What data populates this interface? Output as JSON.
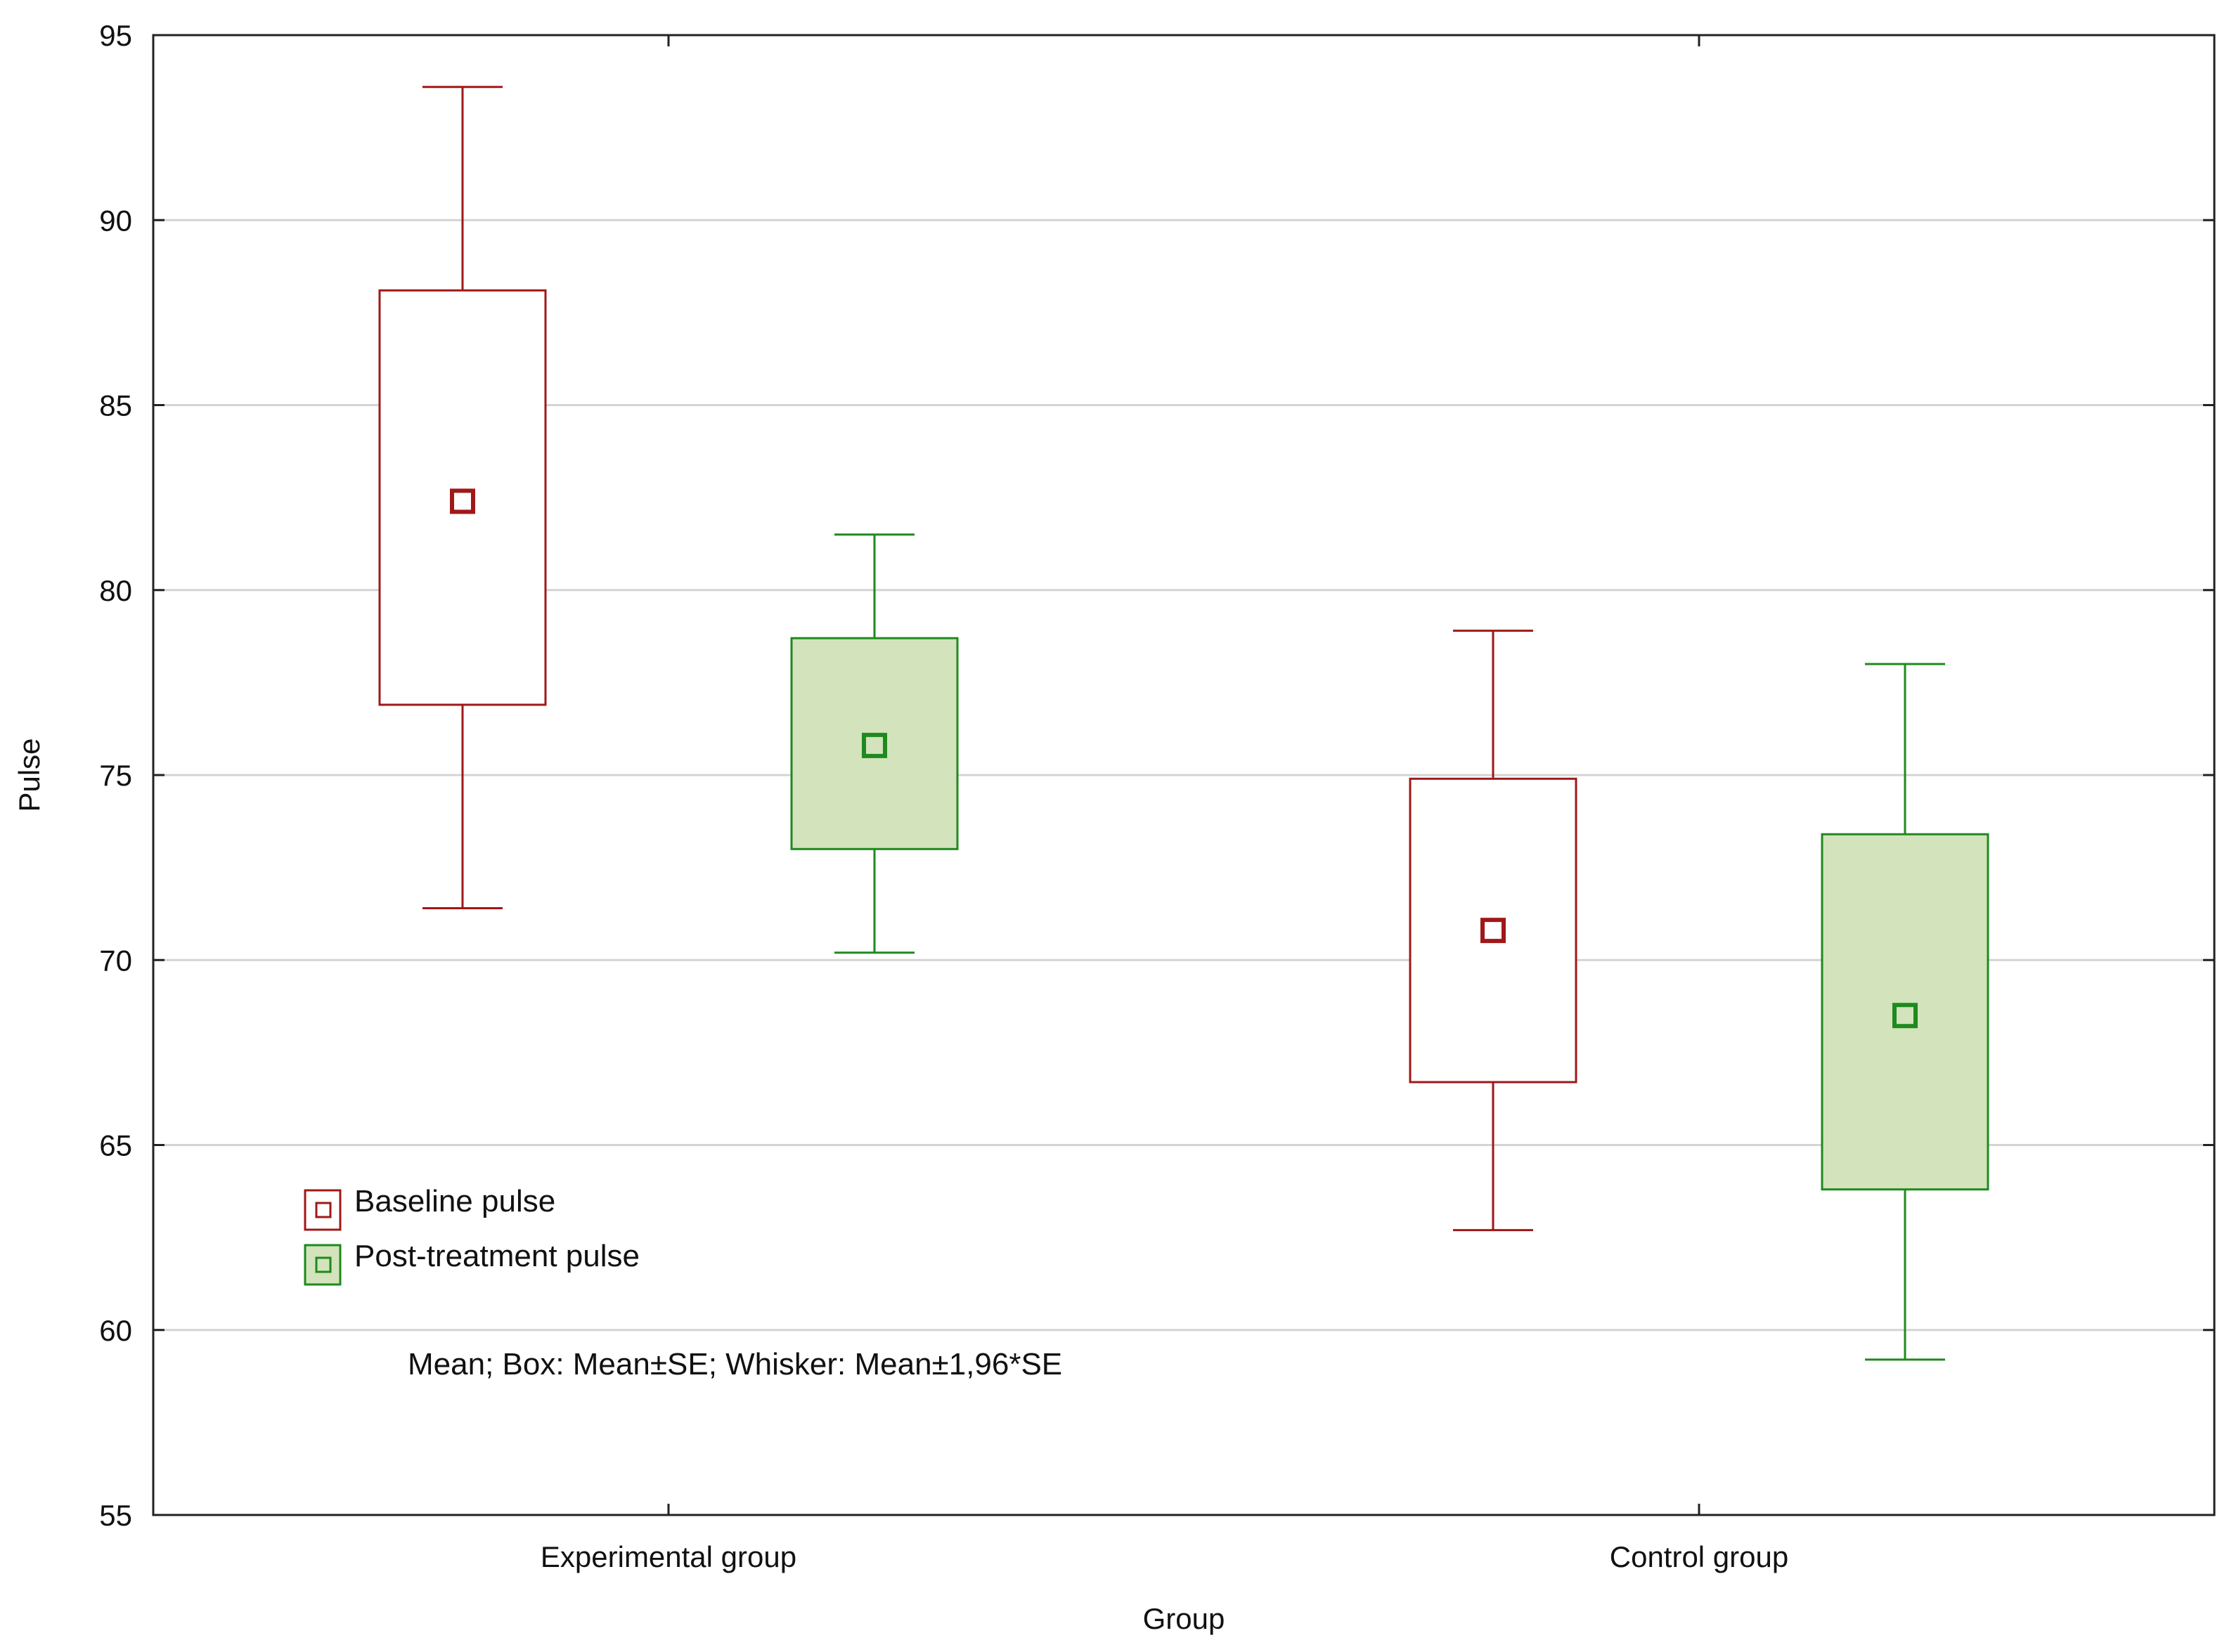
{
  "chart_data": {
    "type": "box",
    "xlabel": "Group",
    "ylabel": "Pulse",
    "ylim": [
      55,
      95
    ],
    "yticks": [
      55,
      60,
      65,
      70,
      75,
      80,
      85,
      90,
      95
    ],
    "ytick_labels": [
      "55",
      "60",
      "65",
      "70",
      "75",
      "80",
      "85",
      "90",
      "95"
    ],
    "grid": true,
    "categories": [
      "Experimental group",
      "Control group"
    ],
    "series": [
      {
        "name": "Baseline pulse",
        "color": "#a01818",
        "fill": "#ffffff",
        "mean": [
          82.4,
          70.8
        ],
        "box_low": [
          76.9,
          66.7
        ],
        "box_high": [
          88.1,
          74.9
        ],
        "whisker_low": [
          71.4,
          62.7
        ],
        "whisker_high": [
          93.6,
          78.9
        ]
      },
      {
        "name": "Post-treatment pulse",
        "color": "#1e8a1e",
        "fill": "#d3e3bc",
        "mean": [
          75.8,
          68.5
        ],
        "box_low": [
          73.0,
          63.8
        ],
        "box_high": [
          78.7,
          73.4
        ],
        "whisker_low": [
          70.2,
          59.2
        ],
        "whisker_high": [
          81.5,
          78.0
        ]
      }
    ],
    "legend": [
      "Baseline pulse",
      "Post-treatment pulse"
    ],
    "legend_position": "bottom-left",
    "annotation": "Mean; Box: Mean±SE; Whisker: Mean±1,96*SE"
  }
}
